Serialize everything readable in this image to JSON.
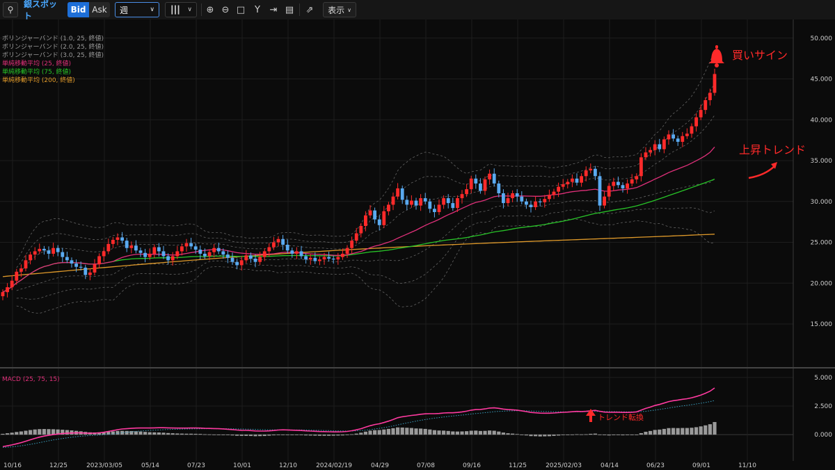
{
  "toolbar": {
    "symbol": "銀スポット",
    "bid_label": "Bid",
    "ask_label": "Ask",
    "period": "週",
    "show_label": "表示",
    "icons": [
      "search-icon",
      "candlestick-icon",
      "zoom-in-icon",
      "zoom-out-icon",
      "fit-icon",
      "text-tool-icon",
      "jump-to-latest-icon",
      "document-icon",
      "add-indicator-icon"
    ]
  },
  "legend": [
    {
      "label": "ボリンジャーバンド (1.0, 25, 終値)",
      "color": "#9a9a9a"
    },
    {
      "label": "ボリンジャーバンド (2.0, 25, 終値)",
      "color": "#9a9a9a"
    },
    {
      "label": "ボリンジャーバンド (3.0, 25, 終値)",
      "color": "#9a9a9a"
    },
    {
      "label": "単純移動平均 (25, 終値)",
      "color": "#e0307a"
    },
    {
      "label": "単純移動平均 (75, 終値)",
      "color": "#28c428"
    },
    {
      "label": "単純移動平均 (200, 終値)",
      "color": "#e09a2a"
    }
  ],
  "macd_label": "MACD (25, 75, 15)",
  "annotations": {
    "buy_sign": "買いサイン",
    "uptrend": "上昇トレンド",
    "trend_reversal": "トレンド転換"
  },
  "colors": {
    "up": "#ff2a2a",
    "down": "#5aaaf0",
    "annotation": "#ff2a2a",
    "macd": "#ff3aa0",
    "signal": "#3aa0c0",
    "hist": "#9a9a9a"
  },
  "chart_data": {
    "type": "candlestick",
    "y_ticks": [
      "50.000",
      "45.000",
      "40.000",
      "35.000",
      "30.000",
      "25.000",
      "20.000",
      "15.000"
    ],
    "ylim": [
      11,
      51
    ],
    "macd_ticks": [
      "5.000",
      "2.500",
      "0.000"
    ],
    "macd_ylim": [
      -2,
      5.6
    ],
    "x_ticks": [
      "10/16",
      "12/25",
      "2023/03/05",
      "05/14",
      "07/23",
      "10/01",
      "12/10",
      "2024/02/19",
      "04/29",
      "07/08",
      "09/16",
      "11/25",
      "2025/02/03",
      "04/14",
      "06/23",
      "09/01",
      "11/10"
    ],
    "x_tick_index": [
      0,
      10,
      20,
      30,
      40,
      50,
      60,
      70,
      80,
      90,
      100,
      110,
      120,
      130,
      140,
      150,
      160
    ],
    "weekly_close": [
      18.9,
      19.5,
      20.3,
      21.4,
      21.8,
      22.8,
      23.5,
      23.9,
      24.2,
      24.0,
      23.6,
      24.3,
      23.8,
      23.2,
      22.8,
      22.4,
      22.0,
      21.9,
      21.0,
      21.3,
      22.3,
      23.3,
      23.9,
      24.8,
      25.3,
      25.6,
      25.2,
      24.3,
      24.6,
      24.0,
      23.7,
      23.2,
      23.6,
      24.4,
      23.9,
      23.3,
      22.8,
      23.3,
      23.9,
      24.5,
      24.9,
      24.5,
      24.1,
      23.6,
      23.3,
      23.8,
      24.3,
      23.9,
      23.5,
      23.1,
      22.6,
      22.2,
      22.8,
      23.4,
      23.0,
      22.6,
      23.2,
      23.9,
      24.4,
      25.0,
      25.4,
      24.7,
      24.0,
      23.6,
      23.9,
      23.3,
      22.9,
      23.1,
      22.7,
      22.9,
      23.2,
      23.0,
      22.9,
      23.2,
      23.6,
      24.3,
      25.2,
      26.1,
      27.0,
      28.3,
      28.9,
      27.8,
      27.1,
      28.8,
      29.6,
      30.6,
      31.6,
      30.2,
      29.6,
      30.1,
      29.5,
      30.4,
      30.0,
      29.1,
      28.7,
      29.6,
      30.4,
      29.8,
      29.2,
      30.4,
      30.9,
      31.5,
      32.8,
      32.2,
      31.3,
      32.7,
      33.4,
      32.2,
      31.0,
      29.8,
      30.4,
      31.0,
      30.6,
      30.0,
      29.6,
      29.3,
      30.0,
      29.9,
      30.3,
      30.8,
      31.2,
      31.8,
      32.1,
      32.4,
      32.8,
      32.3,
      33.1,
      33.8,
      34.0,
      33.1,
      29.5,
      30.6,
      31.9,
      32.4,
      32.0,
      31.6,
      32.2,
      32.7,
      33.1,
      35.4,
      36.0,
      36.3,
      37.0,
      36.4,
      37.6,
      38.2,
      37.7,
      37.3,
      38.0,
      38.3,
      39.2,
      40.3,
      41.2,
      42.4,
      43.3,
      45.6
    ],
    "macd": [
      -1.05,
      -0.98,
      -0.9,
      -0.8,
      -0.7,
      -0.58,
      -0.45,
      -0.33,
      -0.22,
      -0.13,
      -0.06,
      0.0,
      0.05,
      0.09,
      0.12,
      0.14,
      0.15,
      0.15,
      0.13,
      0.12,
      0.13,
      0.16,
      0.21,
      0.28,
      0.35,
      0.43,
      0.49,
      0.52,
      0.55,
      0.57,
      0.58,
      0.58,
      0.58,
      0.59,
      0.6,
      0.6,
      0.59,
      0.58,
      0.57,
      0.57,
      0.57,
      0.58,
      0.58,
      0.57,
      0.55,
      0.54,
      0.53,
      0.52,
      0.5,
      0.47,
      0.44,
      0.4,
      0.38,
      0.37,
      0.35,
      0.32,
      0.31,
      0.31,
      0.33,
      0.36,
      0.4,
      0.42,
      0.41,
      0.39,
      0.38,
      0.36,
      0.33,
      0.31,
      0.29,
      0.27,
      0.26,
      0.25,
      0.24,
      0.24,
      0.25,
      0.28,
      0.34,
      0.42,
      0.52,
      0.65,
      0.78,
      0.88,
      0.95,
      1.06,
      1.18,
      1.32,
      1.48,
      1.56,
      1.62,
      1.68,
      1.72,
      1.78,
      1.82,
      1.83,
      1.83,
      1.85,
      1.89,
      1.91,
      1.91,
      1.94,
      1.99,
      2.05,
      2.14,
      2.19,
      2.2,
      2.25,
      2.32,
      2.34,
      2.3,
      2.23,
      2.19,
      2.17,
      2.14,
      2.08,
      2.01,
      1.94,
      1.91,
      1.88,
      1.87,
      1.87,
      1.89,
      1.92,
      1.95,
      1.97,
      2.0,
      2.03,
      2.02,
      2.04,
      2.08,
      2.12,
      2.04,
      1.97,
      1.95,
      1.96,
      1.96,
      1.94,
      1.94,
      1.96,
      1.99,
      2.14,
      2.29,
      2.41,
      2.55,
      2.64,
      2.76,
      2.89,
      2.97,
      3.02,
      3.09,
      3.14,
      3.22,
      3.33,
      3.46,
      3.62,
      3.8,
      4.08
    ],
    "signal": [
      -1.12,
      -1.1,
      -1.07,
      -1.03,
      -0.98,
      -0.92,
      -0.85,
      -0.78,
      -0.7,
      -0.62,
      -0.54,
      -0.47,
      -0.4,
      -0.34,
      -0.28,
      -0.23,
      -0.18,
      -0.14,
      -0.11,
      -0.08,
      -0.06,
      -0.04,
      -0.01,
      0.03,
      0.07,
      0.11,
      0.16,
      0.2,
      0.24,
      0.28,
      0.31,
      0.34,
      0.37,
      0.39,
      0.41,
      0.43,
      0.45,
      0.46,
      0.47,
      0.48,
      0.49,
      0.5,
      0.51,
      0.51,
      0.52,
      0.52,
      0.52,
      0.52,
      0.52,
      0.51,
      0.51,
      0.5,
      0.49,
      0.48,
      0.47,
      0.46,
      0.44,
      0.43,
      0.42,
      0.42,
      0.42,
      0.42,
      0.42,
      0.41,
      0.41,
      0.41,
      0.4,
      0.39,
      0.38,
      0.37,
      0.36,
      0.35,
      0.33,
      0.32,
      0.32,
      0.31,
      0.31,
      0.33,
      0.35,
      0.39,
      0.43,
      0.49,
      0.55,
      0.61,
      0.68,
      0.76,
      0.85,
      0.94,
      1.02,
      1.1,
      1.18,
      1.25,
      1.32,
      1.38,
      1.44,
      1.49,
      1.54,
      1.59,
      1.63,
      1.67,
      1.71,
      1.75,
      1.8,
      1.84,
      1.88,
      1.92,
      1.96,
      2.0,
      2.03,
      2.05,
      2.07,
      2.08,
      2.09,
      2.09,
      2.08,
      2.07,
      2.05,
      2.04,
      2.02,
      2.01,
      2.0,
      2.0,
      1.99,
      1.99,
      1.99,
      2.0,
      2.0,
      2.01,
      2.01,
      2.03,
      2.03,
      2.02,
      2.02,
      2.01,
      2.0,
      2.0,
      1.99,
      1.99,
      1.99,
      2.01,
      2.04,
      2.09,
      2.14,
      2.2,
      2.26,
      2.32,
      2.39,
      2.45,
      2.51,
      2.56,
      2.62,
      2.68,
      2.74,
      2.81,
      2.89,
      2.98
    ]
  }
}
